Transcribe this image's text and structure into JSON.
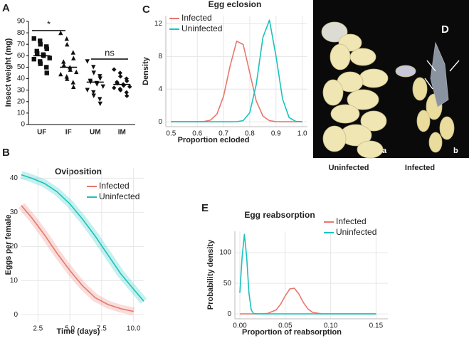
{
  "chart_data": [
    {
      "panel": "A",
      "type": "dot",
      "y_label": "Insect weight (mg)",
      "categories": [
        "UF",
        "IF",
        "UM",
        "IM"
      ],
      "points": [
        [
          75,
          73,
          70,
          68,
          66,
          64,
          62,
          61,
          60,
          58,
          57,
          55,
          53,
          50,
          45
        ],
        [
          80,
          75,
          70,
          63,
          58,
          55,
          52,
          50,
          48,
          46,
          44,
          42,
          40,
          37,
          33
        ],
        [
          55,
          50,
          45,
          42,
          40,
          38,
          37,
          36,
          35,
          33,
          30,
          28,
          25,
          22,
          18
        ],
        [
          48,
          45,
          42,
          40,
          38,
          37,
          36,
          35,
          34,
          33,
          32,
          31,
          30,
          28,
          25
        ]
      ],
      "means": [
        60,
        50,
        37,
        35
      ],
      "ylim": [
        0,
        90
      ],
      "yticks": [
        0,
        10,
        20,
        30,
        40,
        50,
        60,
        70,
        80,
        90
      ],
      "annotations": [
        "*",
        "ns"
      ],
      "color": "#111111"
    },
    {
      "panel": "B",
      "type": "line",
      "title": "Oviposition",
      "x_label": "Time (days)",
      "y_label": "Eggs per female",
      "series": [
        {
          "name": "Infected",
          "color": "#e8776c",
          "x": [
            1.2,
            2,
            3,
            4,
            5,
            6,
            7,
            8,
            9,
            10
          ],
          "values": [
            32,
            28.5,
            23.5,
            18,
            13,
            8.5,
            5,
            3,
            1.8,
            1
          ]
        },
        {
          "name": "Uninfected",
          "color": "#19c2bd",
          "x": [
            1.2,
            2,
            3,
            4,
            5,
            6,
            7,
            8,
            9,
            10,
            10.8
          ],
          "values": [
            41,
            40,
            38.5,
            36,
            32.5,
            28,
            23,
            17.5,
            12,
            7.5,
            4
          ]
        }
      ],
      "xlim": [
        1.2,
        10.8
      ],
      "xticks": [
        2.5,
        {
          "value": 5,
          "label": "5.0"
        },
        7.5,
        {
          "value": 10,
          "label": "10.0"
        }
      ],
      "ylim": [
        -2,
        43
      ],
      "yticks": [
        0,
        10,
        20,
        30,
        40
      ],
      "grid": true,
      "ribbon": true
    },
    {
      "panel": "C",
      "type": "line",
      "title": "Egg eclosion",
      "x_label": "Proportion ecloded",
      "y_label": "Density",
      "x": [
        0.5,
        0.55,
        0.6,
        0.625,
        0.65,
        0.675,
        0.7,
        0.725,
        0.75,
        0.775,
        0.8,
        0.825,
        0.85,
        0.875,
        0.9,
        0.925,
        0.95,
        0.975,
        1.0
      ],
      "series": [
        {
          "name": "Infected",
          "color": "#e8776c",
          "values": [
            0,
            0,
            0,
            0.03,
            0.19,
            0.95,
            3.12,
            6.82,
            9.87,
            9.47,
            6.03,
            2.54,
            0.71,
            0.13,
            0.02,
            0,
            0,
            0,
            0
          ]
        },
        {
          "name": "Uninfected",
          "color": "#19c2bd",
          "values": [
            0,
            0,
            0,
            0,
            0,
            0,
            0,
            0,
            0.01,
            0.14,
            1.1,
            4.6,
            10.33,
            12.45,
            8.05,
            2.8,
            0.52,
            0.05,
            0
          ]
        }
      ],
      "xlim": [
        0.48,
        1.02
      ],
      "xticks": [
        0.5,
        0.6,
        0.7,
        0.8,
        0.9,
        {
          "value": 1,
          "label": "1.0"
        }
      ],
      "ylim": [
        -0.6,
        13
      ],
      "yticks": [
        0,
        4,
        8,
        12
      ],
      "grid": true
    },
    {
      "panel": "E",
      "type": "line",
      "title": "Egg reabsorption",
      "x_label": "Proportion of reabsorption",
      "y_label": "Probability density",
      "x": [
        0,
        0.0025,
        0.005,
        0.0075,
        0.01,
        0.0125,
        0.015,
        0.02,
        0.03,
        0.04,
        0.045,
        0.05,
        0.055,
        0.06,
        0.065,
        0.07,
        0.075,
        0.08,
        0.09,
        0.1,
        0.125,
        0.15
      ],
      "series": [
        {
          "name": "Infected",
          "color": "#e8776c",
          "values": [
            0,
            0,
            0,
            0,
            0,
            0,
            0,
            0,
            0.45,
            6.55,
            16.1,
            29.6,
            40.8,
            42.0,
            32.3,
            18.6,
            8.0,
            2.6,
            0.11,
            0,
            0,
            0
          ]
        },
        {
          "name": "Uninfected",
          "color": "#19c2bd",
          "values": [
            34.3,
            93.3,
            130,
            93.3,
            34.3,
            6.5,
            0.64,
            0,
            0,
            0,
            0,
            0,
            0,
            0,
            0,
            0,
            0,
            0,
            0,
            0,
            0,
            0
          ]
        }
      ],
      "xlim": [
        -0.0055,
        0.163
      ],
      "xticks": [
        {
          "value": 0,
          "label": "0.00"
        },
        0.05,
        {
          "value": 0.1,
          "label": "0.10"
        },
        0.15
      ],
      "ylim": [
        -8,
        135
      ],
      "yticks": [
        0,
        50,
        100
      ],
      "grid": true
    }
  ],
  "photo": {
    "panel": "D",
    "left_label": "a",
    "right_label": "b",
    "left_caption": "Uninfected",
    "right_caption": "Infected"
  }
}
